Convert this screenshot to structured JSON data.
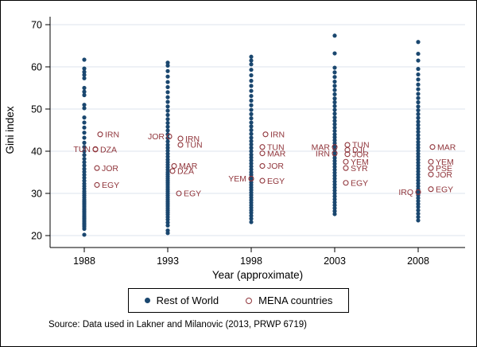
{
  "figure": {
    "source_note": "Source: Data used in Lakner and Milanovic (2013, PRWP 6719)"
  },
  "chart_data": {
    "type": "scatter",
    "title": "",
    "xlabel": "Year (approximate)",
    "ylabel": "Gini index",
    "x_ticks": [
      1988,
      1993,
      1998,
      2003,
      2008
    ],
    "y_ticks": [
      20,
      30,
      40,
      50,
      60,
      70
    ],
    "ylim": [
      17,
      71
    ],
    "grid": "horizontal",
    "legend_position": "bottom-center",
    "colors": {
      "rest_of_world": "#1a476f",
      "mena": "#90353b",
      "gridline": "#dce3ec",
      "axis": "#000000"
    },
    "series": [
      {
        "name": "Rest of World",
        "marker": "filled-dot",
        "values_by_year": {
          "1988": [
            20.2,
            21.6,
            22.1,
            22.5,
            22.9,
            23.3,
            23.7,
            24.1,
            24.5,
            24.9,
            25.3,
            25.7,
            26.1,
            26.5,
            26.9,
            27.3,
            27.7,
            28.1,
            28.5,
            29.0,
            29.5,
            30.0,
            30.5,
            31.1,
            31.7,
            32.3,
            33.0,
            33.7,
            34.4,
            35.1,
            35.8,
            36.6,
            37.4,
            38.2,
            39.1,
            40.0,
            41.0,
            42.0,
            43.2,
            44.4,
            45.6,
            46.8,
            48.0,
            50.2,
            51.0,
            53.3,
            54.1,
            55.0,
            57.3,
            58.1,
            58.8,
            59.6,
            61.7
          ],
          "1993": [
            20.6,
            21.2,
            22.4,
            23.1,
            23.8,
            24.4,
            25.0,
            25.5,
            26.0,
            26.5,
            27.0,
            27.5,
            28.0,
            28.5,
            29.0,
            29.5,
            30.0,
            30.5,
            31.0,
            31.5,
            32.0,
            32.5,
            33.0,
            33.5,
            34.0,
            34.5,
            35.0,
            35.6,
            36.2,
            36.8,
            37.4,
            38.0,
            38.7,
            39.4,
            40.1,
            40.8,
            41.5,
            42.3,
            43.1,
            44.0,
            44.9,
            45.8,
            46.7,
            47.6,
            48.6,
            49.6,
            50.6,
            51.7,
            52.8,
            54.0,
            55.2,
            56.4,
            57.7,
            59.0,
            60.3,
            61.0
          ],
          "1998": [
            23.2,
            24.0,
            24.7,
            25.4,
            26.0,
            26.6,
            27.2,
            27.8,
            28.4,
            29.0,
            29.6,
            30.2,
            30.8,
            31.4,
            32.0,
            32.6,
            33.2,
            33.8,
            34.4,
            35.0,
            35.7,
            36.4,
            37.1,
            37.8,
            38.5,
            39.2,
            40.0,
            40.8,
            41.6,
            42.4,
            43.2,
            44.1,
            45.0,
            45.9,
            46.8,
            47.8,
            48.8,
            49.8,
            50.9,
            52.0,
            53.1,
            54.3,
            55.5,
            56.7,
            58.0,
            59.3,
            60.6,
            61.5,
            62.4
          ],
          "2003": [
            25.1,
            25.8,
            26.5,
            27.2,
            27.9,
            28.6,
            29.3,
            30.0,
            30.7,
            31.4,
            32.1,
            32.8,
            33.5,
            34.2,
            34.9,
            35.6,
            36.3,
            37.0,
            37.7,
            38.4,
            39.1,
            39.8,
            40.5,
            41.2,
            41.9,
            42.6,
            43.3,
            44.0,
            44.8,
            45.6,
            46.4,
            47.2,
            48.0,
            48.9,
            49.8,
            50.7,
            51.6,
            52.5,
            53.5,
            54.5,
            55.5,
            56.5,
            57.6,
            58.7,
            59.8,
            63.2,
            67.4
          ],
          "2008": [
            23.6,
            24.4,
            25.2,
            26.0,
            26.8,
            27.5,
            28.2,
            28.9,
            29.6,
            30.3,
            31.0,
            31.7,
            32.4,
            33.1,
            33.8,
            34.5,
            35.2,
            35.9,
            36.6,
            37.3,
            38.0,
            38.7,
            39.4,
            40.1,
            40.8,
            41.5,
            42.2,
            43.0,
            43.8,
            44.6,
            45.4,
            46.2,
            47.0,
            47.9,
            48.8,
            49.7,
            50.6,
            51.6,
            52.6,
            53.6,
            54.7,
            55.8,
            57.0,
            58.2,
            59.5,
            61.5,
            63.1,
            65.9
          ]
        }
      },
      {
        "name": "MENA countries",
        "marker": "hollow-circle",
        "points": [
          {
            "year": 1988,
            "country": "IRN",
            "gini": 44.0,
            "dx": 20,
            "label_side": "right"
          },
          {
            "year": 1988,
            "country": "TUN",
            "gini": 40.5,
            "dx": 14,
            "label_side": "left"
          },
          {
            "year": 1988,
            "country": "DZA",
            "gini": 40.4,
            "dx": 14,
            "label_side": "right"
          },
          {
            "year": 1988,
            "country": "JOR",
            "gini": 36.0,
            "dx": 16,
            "label_side": "right"
          },
          {
            "year": 1988,
            "country": "EGY",
            "gini": 32.0,
            "dx": 16,
            "label_side": "right"
          },
          {
            "year": 1993,
            "country": "JOR",
            "gini": 43.5,
            "dx": 2,
            "label_side": "left"
          },
          {
            "year": 1993,
            "country": "IRN",
            "gini": 43.0,
            "dx": 16,
            "label_side": "right"
          },
          {
            "year": 1993,
            "country": "TUN",
            "gini": 41.5,
            "dx": 16,
            "label_side": "right"
          },
          {
            "year": 1993,
            "country": "MAR",
            "gini": 36.5,
            "dx": 8,
            "label_side": "right"
          },
          {
            "year": 1993,
            "country": "DZA",
            "gini": 35.3,
            "dx": 6,
            "label_side": "right"
          },
          {
            "year": 1993,
            "country": "EGY",
            "gini": 30.0,
            "dx": 14,
            "label_side": "right"
          },
          {
            "year": 1998,
            "country": "IRN",
            "gini": 44.0,
            "dx": 18,
            "label_side": "right"
          },
          {
            "year": 1998,
            "country": "TUN",
            "gini": 41.0,
            "dx": 14,
            "label_side": "right"
          },
          {
            "year": 1998,
            "country": "MAR",
            "gini": 39.5,
            "dx": 14,
            "label_side": "right"
          },
          {
            "year": 1998,
            "country": "JOR",
            "gini": 36.5,
            "dx": 14,
            "label_side": "right"
          },
          {
            "year": 1998,
            "country": "YEM",
            "gini": 33.5,
            "dx": 0,
            "label_side": "left"
          },
          {
            "year": 1998,
            "country": "EGY",
            "gini": 33.0,
            "dx": 14,
            "label_side": "right"
          },
          {
            "year": 2003,
            "country": "TUN",
            "gini": 41.5,
            "dx": 16,
            "label_side": "right"
          },
          {
            "year": 2003,
            "country": "MAR",
            "gini": 41.0,
            "dx": 0,
            "label_side": "left"
          },
          {
            "year": 2003,
            "country": "DJI",
            "gini": 40.3,
            "dx": 16,
            "label_side": "right"
          },
          {
            "year": 2003,
            "country": "IRN",
            "gini": 39.5,
            "dx": 0,
            "label_side": "left"
          },
          {
            "year": 2003,
            "country": "JOR",
            "gini": 39.3,
            "dx": 16,
            "label_side": "right"
          },
          {
            "year": 2003,
            "country": "YEM",
            "gini": 37.5,
            "dx": 14,
            "label_side": "right"
          },
          {
            "year": 2003,
            "country": "SYR",
            "gini": 36.0,
            "dx": 14,
            "label_side": "right"
          },
          {
            "year": 2003,
            "country": "EGY",
            "gini": 32.5,
            "dx": 14,
            "label_side": "right"
          },
          {
            "year": 2008,
            "country": "MAR",
            "gini": 41.0,
            "dx": 18,
            "label_side": "right"
          },
          {
            "year": 2008,
            "country": "YEM",
            "gini": 37.5,
            "dx": 16,
            "label_side": "right"
          },
          {
            "year": 2008,
            "country": "PSE",
            "gini": 36.0,
            "dx": 16,
            "label_side": "right"
          },
          {
            "year": 2008,
            "country": "JOR",
            "gini": 34.5,
            "dx": 16,
            "label_side": "right"
          },
          {
            "year": 2008,
            "country": "EGY",
            "gini": 31.0,
            "dx": 16,
            "label_side": "right"
          },
          {
            "year": 2008,
            "country": "IRQ",
            "gini": 30.3,
            "dx": 0,
            "label_side": "left"
          }
        ]
      }
    ]
  }
}
